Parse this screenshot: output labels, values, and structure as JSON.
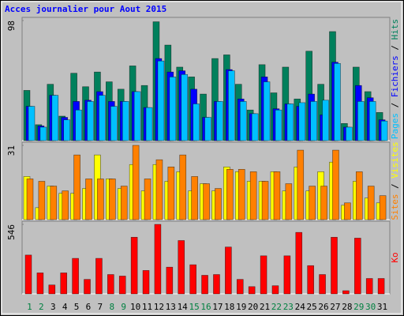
{
  "chart_data": [
    {
      "type": "bar",
      "title": "Acces journalier pour Aout 2015",
      "ylim": [
        0,
        98
      ],
      "yticks": [
        98
      ],
      "legend_separator": " / ",
      "series": [
        {
          "name": "Hits",
          "color": "#00805c",
          "values": [
            41,
            13,
            46,
            20,
            55,
            44,
            56,
            48,
            42,
            61,
            45,
            97,
            78,
            60,
            52,
            38,
            67,
            70,
            46,
            25,
            62,
            39,
            60,
            34,
            73,
            46,
            89,
            14,
            60,
            40,
            23
          ]
        },
        {
          "name": "Fichiers",
          "color": "#0000ff",
          "values": [
            28,
            12,
            37,
            19,
            32,
            33,
            40,
            32,
            32,
            40,
            27,
            67,
            56,
            57,
            42,
            19,
            32,
            58,
            34,
            22,
            52,
            26,
            30,
            28,
            38,
            21,
            64,
            11,
            45,
            35,
            17
          ]
        },
        {
          "name": "Pages",
          "color": "#00c0ff",
          "values": [
            28,
            11,
            37,
            17,
            25,
            32,
            37,
            28,
            32,
            40,
            27,
            65,
            52,
            54,
            30,
            19,
            32,
            57,
            32,
            22,
            48,
            25,
            30,
            31,
            32,
            33,
            63,
            11,
            32,
            32,
            16
          ]
        }
      ]
    },
    {
      "type": "bar",
      "ylim": [
        0,
        31
      ],
      "yticks": [
        31
      ],
      "legend_separator": " / ",
      "series": [
        {
          "name": "Visites",
          "color": "#ffff00",
          "values": [
            18,
            5,
            14,
            11,
            11,
            13,
            27,
            17,
            13,
            23,
            12,
            23,
            16,
            20,
            12,
            15,
            12,
            22,
            20,
            16,
            16,
            20,
            12,
            22,
            12,
            20,
            24,
            6,
            16,
            9,
            7
          ]
        },
        {
          "name": "Sites",
          "color": "#ff8000",
          "values": [
            17,
            16,
            14,
            12,
            27,
            17,
            17,
            17,
            14,
            31,
            17,
            25,
            22,
            27,
            18,
            15,
            13,
            21,
            21,
            20,
            16,
            20,
            15,
            29,
            14,
            14,
            29,
            7,
            20,
            14,
            10
          ]
        }
      ]
    },
    {
      "type": "bar",
      "ylim": [
        0,
        546
      ],
      "yticks": [
        546
      ],
      "legend_separator": " / ",
      "categories": [
        "1",
        "2",
        "3",
        "4",
        "5",
        "6",
        "7",
        "8",
        "9",
        "10",
        "11",
        "12",
        "13",
        "14",
        "15",
        "16",
        "17",
        "18",
        "19",
        "20",
        "21",
        "22",
        "23",
        "24",
        "25",
        "26",
        "27",
        "28",
        "29",
        "30",
        "31"
      ],
      "category_colors": [
        "#008040",
        "#008040",
        "#000000",
        "#000000",
        "#000000",
        "#000000",
        "#000000",
        "#008040",
        "#008040",
        "#000000",
        "#000000",
        "#000000",
        "#000000",
        "#000000",
        "#008040",
        "#008040",
        "#000000",
        "#000000",
        "#000000",
        "#000000",
        "#000000",
        "#008040",
        "#008040",
        "#000000",
        "#000000",
        "#000000",
        "#000000",
        "#000000",
        "#008040",
        "#008040",
        "#000000"
      ],
      "series": [
        {
          "name": "Ko",
          "color": "#ff0000",
          "values": [
            305,
            165,
            70,
            165,
            279,
            114,
            279,
            152,
            140,
            445,
            184,
            546,
            210,
            419,
            229,
            146,
            152,
            368,
            114,
            57,
            299,
            64,
            299,
            483,
            222,
            152,
            445,
            25,
            438,
            121,
            121
          ]
        }
      ]
    }
  ]
}
